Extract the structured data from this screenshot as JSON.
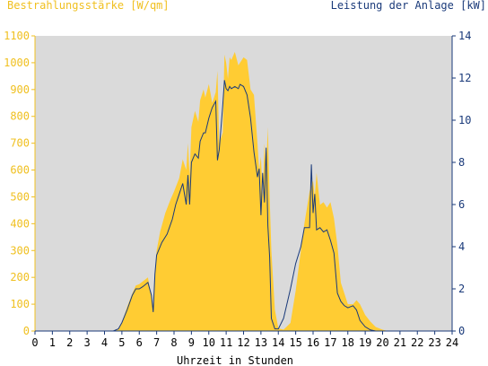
{
  "chart_data": {
    "type": "area",
    "title_left": "Bestrahlungsstärke [W/qm]",
    "title_right": "Leistung der Anlage [kW]",
    "xlabel": "Uhrzeit in Stunden",
    "xlim": [
      0,
      24
    ],
    "x_ticks": [
      "0",
      "1",
      "2",
      "3",
      "4",
      "5",
      "6",
      "7",
      "8",
      "9",
      "10",
      "11",
      "12",
      "13",
      "14",
      "15",
      "16",
      "17",
      "18",
      "19",
      "20",
      "21",
      "22",
      "23",
      "24"
    ],
    "ylim_left": [
      0,
      1100
    ],
    "y_ticks_left": [
      "0",
      "100",
      "200",
      "300",
      "400",
      "500",
      "600",
      "700",
      "800",
      "900",
      "1000",
      "1100"
    ],
    "ylim_right": [
      0,
      14
    ],
    "y_ticks_right": [
      "0",
      "2",
      "4",
      "6",
      "8",
      "10",
      "12",
      "14"
    ],
    "grid": false,
    "colors": {
      "plot_background": "#dadada",
      "irradiance_fill": "#ffcc33",
      "power_line": "#1a3a7a",
      "left_axis_text": "#f0c020",
      "right_axis_text": "#1a3a7a"
    },
    "series": [
      {
        "name": "Bestrahlungsstärke [W/qm]",
        "axis": "left",
        "style": "area",
        "x": [
          0,
          4.5,
          4.8,
          5.0,
          5.3,
          5.6,
          5.8,
          6.0,
          6.2,
          6.5,
          6.8,
          6.9,
          7.0,
          7.2,
          7.5,
          7.8,
          8.0,
          8.3,
          8.5,
          8.7,
          8.8,
          8.9,
          9.0,
          9.2,
          9.4,
          9.5,
          9.7,
          9.8,
          10.0,
          10.2,
          10.4,
          10.5,
          10.6,
          10.8,
          10.9,
          11.0,
          11.1,
          11.2,
          11.3,
          11.5,
          11.7,
          11.8,
          12.0,
          12.2,
          12.4,
          12.6,
          12.8,
          12.9,
          13.0,
          13.1,
          13.2,
          13.3,
          13.4,
          13.5,
          13.6,
          13.8,
          14.0,
          14.3,
          14.7,
          15.0,
          15.3,
          15.5,
          15.8,
          16.0,
          16.1,
          16.2,
          16.4,
          16.6,
          16.8,
          17.0,
          17.2,
          17.4,
          17.6,
          17.8,
          18.0,
          18.3,
          18.5,
          18.7,
          19.0,
          19.3,
          19.6,
          20.0,
          20.3,
          24.0
        ],
        "values": [
          0,
          0,
          5,
          30,
          90,
          140,
          170,
          175,
          185,
          200,
          90,
          210,
          300,
          370,
          440,
          490,
          520,
          570,
          640,
          600,
          700,
          580,
          760,
          820,
          780,
          860,
          900,
          870,
          920,
          850,
          890,
          970,
          700,
          740,
          1030,
          1000,
          940,
          1020,
          1010,
          1040,
          990,
          1000,
          1020,
          1010,
          900,
          880,
          700,
          600,
          650,
          500,
          700,
          600,
          760,
          500,
          300,
          80,
          10,
          5,
          30,
          150,
          300,
          400,
          520,
          560,
          500,
          590,
          470,
          480,
          460,
          480,
          420,
          320,
          180,
          140,
          100,
          100,
          115,
          100,
          60,
          35,
          15,
          5,
          0,
          0
        ]
      },
      {
        "name": "Leistung der Anlage [kW]",
        "axis": "right",
        "style": "line",
        "x": [
          0,
          4.5,
          4.8,
          5.0,
          5.3,
          5.6,
          5.8,
          6.0,
          6.2,
          6.5,
          6.7,
          6.8,
          6.9,
          7.0,
          7.3,
          7.6,
          7.9,
          8.1,
          8.3,
          8.5,
          8.7,
          8.8,
          8.9,
          9.0,
          9.2,
          9.4,
          9.5,
          9.7,
          9.8,
          10.0,
          10.2,
          10.4,
          10.5,
          10.6,
          10.8,
          10.9,
          11.0,
          11.1,
          11.2,
          11.3,
          11.5,
          11.7,
          11.8,
          12.0,
          12.2,
          12.4,
          12.6,
          12.8,
          12.9,
          13.0,
          13.1,
          13.2,
          13.3,
          13.4,
          13.5,
          13.6,
          13.8,
          14.0,
          14.3,
          14.7,
          15.0,
          15.3,
          15.5,
          15.8,
          15.9,
          16.0,
          16.1,
          16.2,
          16.4,
          16.6,
          16.8,
          17.0,
          17.2,
          17.4,
          17.6,
          17.8,
          18.0,
          18.3,
          18.5,
          18.7,
          19.0,
          19.3,
          19.6,
          20.0,
          20.3,
          24.0
        ],
        "values": [
          0,
          0,
          0.1,
          0.4,
          1.0,
          1.7,
          2.0,
          2.0,
          2.1,
          2.3,
          1.7,
          0.9,
          2.7,
          3.6,
          4.2,
          4.6,
          5.3,
          6.0,
          6.5,
          7.0,
          6.0,
          7.4,
          6.0,
          8.0,
          8.4,
          8.2,
          9.0,
          9.4,
          9.4,
          10.1,
          10.6,
          10.9,
          8.1,
          8.6,
          10.7,
          11.9,
          11.5,
          11.4,
          11.6,
          11.5,
          11.6,
          11.5,
          11.7,
          11.6,
          11.2,
          10.1,
          8.5,
          7.3,
          7.7,
          5.5,
          7.5,
          6.1,
          8.7,
          5.0,
          3.5,
          0.6,
          0.1,
          0.1,
          0.6,
          2.0,
          3.2,
          4.0,
          4.9,
          4.9,
          7.9,
          5.6,
          6.5,
          4.8,
          4.9,
          4.7,
          4.8,
          4.3,
          3.7,
          1.8,
          1.4,
          1.2,
          1.1,
          1.2,
          1.0,
          0.5,
          0.2,
          0.05,
          0,
          0,
          0,
          0
        ]
      }
    ]
  }
}
